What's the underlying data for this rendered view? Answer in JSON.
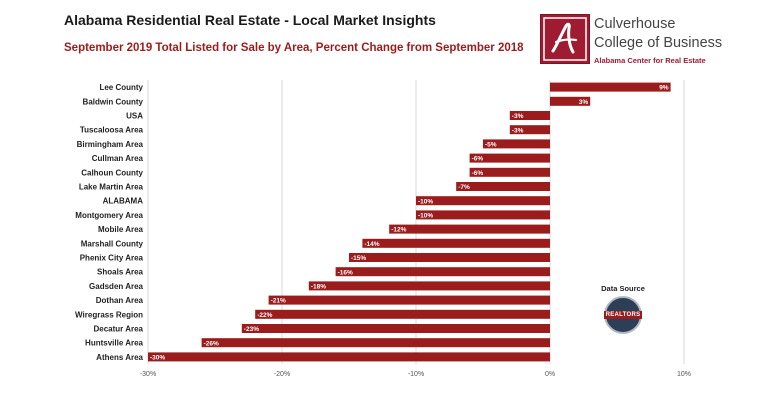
{
  "header": {
    "title": "Alabama Residential Real Estate - Local Market Insights",
    "subtitle": "September 2019 Total Listed for Sale by Area, Percent Change from September 2018"
  },
  "logo": {
    "name": "Culverhouse",
    "college": "College of Business",
    "center": "Alabama Center for Real Estate",
    "icon": "script-a-logo-icon",
    "color": "#9e1b32"
  },
  "data_source": {
    "label": "Data Source",
    "badge_text": "REALTORS",
    "icon": "realtors-badge-icon"
  },
  "colors": {
    "bar": "#9b1c1c",
    "grid": "#d9d9d9",
    "label_text": "#ffffff"
  },
  "chart_data": {
    "type": "bar",
    "orientation": "horizontal",
    "title": "Alabama Residential Real Estate - Local Market Insights",
    "subtitle": "September 2019 Total Listed for Sale by Area, Percent Change from September 2018",
    "categories": [
      "Lee County",
      "Baldwin County",
      "USA",
      "Tuscaloosa Area",
      "Birmingham Area",
      "Cullman Area",
      "Calhoun County",
      "Lake Martin Area",
      "ALABAMA",
      "Montgomery Area",
      "Mobile Area",
      "Marshall County",
      "Phenix City Area",
      "Shoals Area",
      "Gadsden Area",
      "Dothan Area",
      "Wiregrass Region",
      "Decatur Area",
      "Huntsville Area",
      "Athens Area"
    ],
    "values": [
      9,
      3,
      -3,
      -3,
      -5,
      -6,
      -6,
      -7,
      -10,
      -10,
      -12,
      -14,
      -15,
      -16,
      -18,
      -21,
      -22,
      -23,
      -26,
      -30
    ],
    "data_labels": [
      "9%",
      "3%",
      "-3%",
      "-3%",
      "-5%",
      "-6%",
      "-6%",
      "-7%",
      "-10%",
      "-10%",
      "-12%",
      "-14%",
      "-15%",
      "-16%",
      "-18%",
      "-21%",
      "-22%",
      "-23%",
      "-26%",
      "-30%"
    ],
    "xlim": [
      -30,
      10
    ],
    "xticks": [
      -30,
      -20,
      -10,
      0,
      10
    ],
    "xtick_labels": [
      "-30%",
      "-20%",
      "-10%",
      "0%",
      "10%"
    ],
    "grid": true,
    "legend": "none"
  }
}
